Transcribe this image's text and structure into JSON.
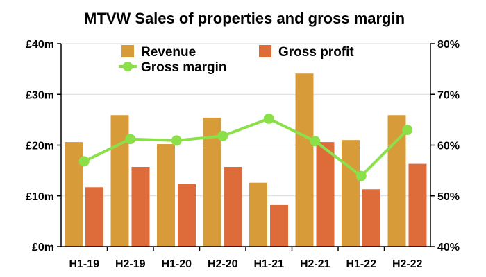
{
  "chart_data": {
    "type": "bar",
    "title": "MTVW Sales of properties and gross margin",
    "categories": [
      "H1-19",
      "H2-19",
      "H1-20",
      "H2-20",
      "H1-21",
      "H2-21",
      "H1-22",
      "H2-22"
    ],
    "series": [
      {
        "name": "Revenue",
        "type": "bar",
        "axis": "left",
        "color": "#D89B3A",
        "values": [
          20.6,
          25.9,
          20.2,
          25.4,
          12.6,
          34.1,
          21.0,
          25.9
        ]
      },
      {
        "name": "Gross profit",
        "type": "bar",
        "axis": "left",
        "color": "#DE6B3A",
        "values": [
          11.7,
          15.7,
          12.3,
          15.7,
          8.2,
          20.6,
          11.3,
          16.3
        ]
      },
      {
        "name": "Gross margin",
        "type": "line",
        "axis": "right",
        "color": "#8BE04A",
        "values": [
          56.8,
          61.2,
          60.9,
          61.8,
          65.2,
          60.8,
          53.9,
          63.0
        ]
      }
    ],
    "y_left": {
      "min": 0,
      "max": 40,
      "ticks": [
        0,
        10,
        20,
        30,
        40
      ],
      "tick_labels": [
        "£0m",
        "£10m",
        "£20m",
        "£30m",
        "£40m"
      ]
    },
    "y_right": {
      "min": 40,
      "max": 80,
      "ticks": [
        40,
        50,
        60,
        70,
        80
      ],
      "tick_labels": [
        "40%",
        "50%",
        "60%",
        "70%",
        "80%"
      ]
    },
    "grid": true,
    "legend_position": "top"
  }
}
